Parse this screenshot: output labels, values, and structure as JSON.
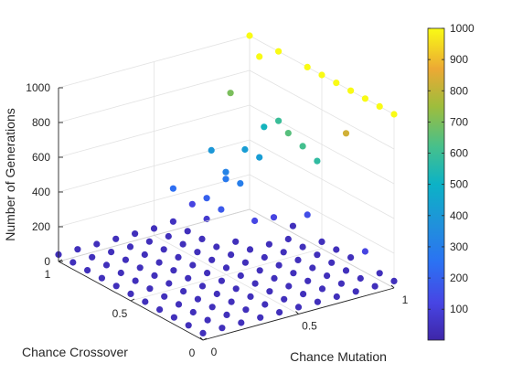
{
  "chart_data": {
    "type": "scatter",
    "title": "",
    "xlabel": "Chance Mutation",
    "ylabel": "Chance Crossover",
    "zlabel": "Number of Generations",
    "xlim": [
      0,
      1
    ],
    "ylim": [
      0,
      1
    ],
    "zlim": [
      0,
      1000
    ],
    "x_ticks": [
      "0",
      "0.5",
      "1"
    ],
    "y_ticks": [
      "0",
      "0.5",
      "1"
    ],
    "z_ticks": [
      "0",
      "200",
      "400",
      "600",
      "800",
      "1000"
    ],
    "grid": true,
    "colorbar": {
      "ticks": [
        "100",
        "200",
        "300",
        "400",
        "500",
        "600",
        "700",
        "800",
        "900",
        "1000"
      ],
      "range": [
        1,
        1000
      ],
      "colormap": "parula"
    },
    "grid_values": [
      0,
      0.1,
      0.2,
      0.3,
      0.4,
      0.5,
      0.6,
      0.7,
      0.8,
      0.9,
      1
    ],
    "generations": [
      [
        40,
        40,
        40,
        40,
        40,
        40,
        40,
        40,
        40,
        40,
        40
      ],
      [
        40,
        40,
        40,
        40,
        40,
        40,
        40,
        40,
        40,
        40,
        40
      ],
      [
        40,
        40,
        40,
        40,
        40,
        40,
        40,
        40,
        40,
        40,
        120
      ],
      [
        40,
        40,
        40,
        40,
        40,
        40,
        40,
        40,
        40,
        40,
        40
      ],
      [
        40,
        40,
        40,
        40,
        40,
        40,
        40,
        40,
        40,
        40,
        40
      ],
      [
        40,
        40,
        40,
        40,
        40,
        40,
        40,
        40,
        40,
        40,
        40
      ],
      [
        40,
        40,
        40,
        40,
        40,
        40,
        40,
        40,
        40,
        40,
        150
      ],
      [
        40,
        40,
        40,
        40,
        40,
        40,
        40,
        40,
        130,
        120,
        40
      ],
      [
        40,
        40,
        40,
        40,
        40,
        40,
        40,
        180,
        300,
        420,
        600
      ],
      [
        40,
        40,
        40,
        40,
        40,
        40,
        40,
        80,
        280,
        420,
        520
      ],
      [
        40,
        40,
        40,
        40,
        40,
        40,
        50,
        120,
        400,
        700,
        1000
      ]
    ],
    "extra_points": [
      {
        "x": 0.7,
        "y": 0.9,
        "z": 200
      },
      {
        "x": 0.8,
        "y": 0.9,
        "z": 320
      },
      {
        "x": 0.6,
        "y": 1.0,
        "z": 240
      },
      {
        "x": 1.0,
        "y": 0.8,
        "z": 1000
      },
      {
        "x": 1.0,
        "y": 0.6,
        "z": 1000
      },
      {
        "x": 1.0,
        "y": 0.5,
        "z": 1000
      },
      {
        "x": 1.0,
        "y": 0.4,
        "z": 1000
      },
      {
        "x": 1.0,
        "y": 0.3,
        "z": 1000
      },
      {
        "x": 1.0,
        "y": 0.2,
        "z": 1000
      },
      {
        "x": 1.0,
        "y": 0.1,
        "z": 1000
      },
      {
        "x": 1.0,
        "y": 0.0,
        "z": 1000
      },
      {
        "x": 0.9,
        "y": 0.2,
        "z": 830
      },
      {
        "x": 0.9,
        "y": 0.4,
        "z": 580
      },
      {
        "x": 0.9,
        "y": 0.5,
        "z": 620
      },
      {
        "x": 0.9,
        "y": 0.6,
        "z": 650
      },
      {
        "x": 0.9,
        "y": 0.8,
        "z": 1000
      }
    ]
  }
}
